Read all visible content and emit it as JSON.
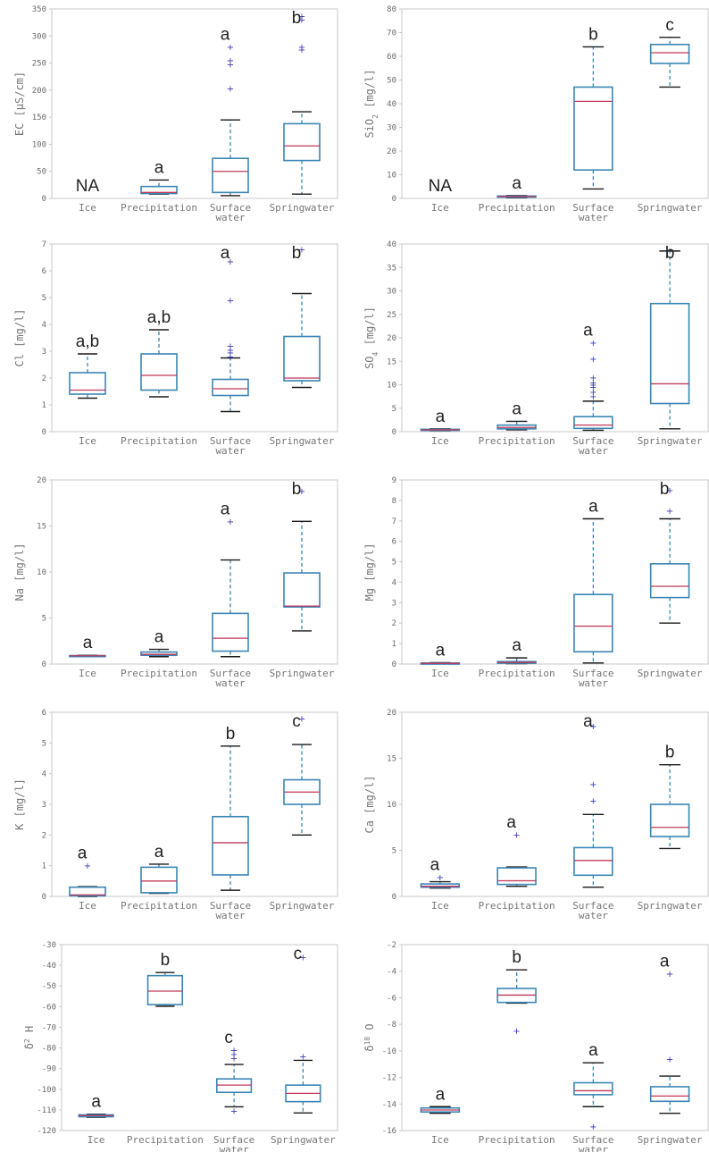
{
  "chart_data": [
    {
      "type": "box",
      "ylabel": "EC [µS/cm]",
      "ylim": [
        0,
        350
      ],
      "yticks": [
        "0",
        "50",
        "100",
        "150",
        "200",
        "250",
        "300",
        "350"
      ],
      "categories": [
        "Ice",
        "Precipitation",
        "Surface\nwater",
        "Springwater"
      ],
      "letters": [
        "NA",
        "a",
        "a",
        "b"
      ],
      "boxes": [
        null,
        {
          "low": 8,
          "q1": 9,
          "median": 11,
          "q3": 22,
          "high": 34,
          "outliers": []
        },
        {
          "low": 5,
          "q1": 11,
          "median": 50,
          "q3": 74,
          "high": 145,
          "outliers": [
            203,
            248,
            255,
            280
          ]
        },
        {
          "low": 8,
          "q1": 70,
          "median": 97,
          "q3": 138,
          "high": 160,
          "outliers": [
            275,
            280,
            330,
            337
          ]
        }
      ]
    },
    {
      "type": "box",
      "ylabel": "SiO2 [mg/l]",
      "ylim": [
        0,
        80
      ],
      "yticks": [
        "0",
        "10",
        "20",
        "30",
        "40",
        "50",
        "60",
        "70",
        "80"
      ],
      "categories": [
        "Ice",
        "Precipitation",
        "Surface\nwater",
        "Springwater"
      ],
      "letters": [
        "NA",
        "a",
        "b",
        "c"
      ],
      "boxes": [
        null,
        {
          "low": 0.3,
          "q1": 0.6,
          "median": 0.8,
          "q3": 1,
          "high": 1.2,
          "outliers": []
        },
        {
          "low": 4,
          "q1": 12,
          "median": 41,
          "q3": 47,
          "high": 64,
          "outliers": []
        },
        {
          "low": 47,
          "q1": 57,
          "median": 61.5,
          "q3": 65,
          "high": 68,
          "outliers": []
        }
      ]
    },
    {
      "type": "box",
      "ylabel": "Cl [mg/l]",
      "ylim": [
        0,
        7
      ],
      "yticks": [
        "0",
        "1",
        "2",
        "3",
        "4",
        "5",
        "6",
        "7"
      ],
      "categories": [
        "Ice",
        "Precipitation",
        "Surface\nwater",
        "Springwater"
      ],
      "letters": [
        "a,b",
        "a,b",
        "a",
        "b"
      ],
      "boxes": [
        {
          "low": 1.25,
          "q1": 1.4,
          "median": 1.55,
          "q3": 2.2,
          "high": 2.9,
          "outliers": []
        },
        {
          "low": 1.3,
          "q1": 1.55,
          "median": 2.1,
          "q3": 2.9,
          "high": 3.8,
          "outliers": []
        },
        {
          "low": 0.75,
          "q1": 1.35,
          "median": 1.6,
          "q3": 1.95,
          "high": 2.75,
          "outliers": [
            2.8,
            2.95,
            3.05,
            3.2,
            4.9,
            6.35
          ]
        },
        {
          "low": 1.65,
          "q1": 1.9,
          "median": 2.0,
          "q3": 3.55,
          "high": 5.15,
          "outliers": [
            6.8
          ]
        }
      ]
    },
    {
      "type": "box",
      "ylabel": "SO4 [mg/l]",
      "ylim": [
        0,
        40
      ],
      "yticks": [
        "0",
        "5",
        "10",
        "15",
        "20",
        "25",
        "30",
        "35",
        "40"
      ],
      "categories": [
        "Ice",
        "Precipitation",
        "Surface\nwater",
        "Springwater"
      ],
      "letters": [
        "a",
        "a",
        "a",
        "b"
      ],
      "boxes": [
        {
          "low": 0.2,
          "q1": 0.3,
          "median": 0.4,
          "q3": 0.5,
          "high": 0.6,
          "outliers": []
        },
        {
          "low": 0.4,
          "q1": 0.6,
          "median": 0.9,
          "q3": 1.4,
          "high": 2.2,
          "outliers": []
        },
        {
          "low": 0.3,
          "q1": 0.7,
          "median": 1.4,
          "q3": 3.2,
          "high": 6.5,
          "outliers": [
            7.5,
            8.5,
            9.5,
            10,
            10.5,
            11.5,
            15.5,
            19
          ]
        },
        {
          "low": 0.6,
          "q1": 6,
          "median": 10.2,
          "q3": 27.3,
          "high": 38.5,
          "outliers": []
        }
      ]
    },
    {
      "type": "box",
      "ylabel": "Na [mg/l]",
      "ylim": [
        0,
        20
      ],
      "yticks": [
        "0",
        "5",
        "10",
        "15",
        "20"
      ],
      "categories": [
        "Ice",
        "Precipitation",
        "Surface\nwater",
        "Springwater"
      ],
      "letters": [
        "a",
        "a",
        "a",
        "b"
      ],
      "boxes": [
        {
          "low": 0.85,
          "q1": 0.88,
          "median": 0.9,
          "q3": 0.92,
          "high": 0.95,
          "outliers": []
        },
        {
          "low": 0.8,
          "q1": 0.95,
          "median": 1.05,
          "q3": 1.3,
          "high": 1.6,
          "outliers": []
        },
        {
          "low": 0.8,
          "q1": 1.4,
          "median": 2.8,
          "q3": 5.5,
          "high": 11.3,
          "outliers": [
            15.5
          ]
        },
        {
          "low": 3.6,
          "q1": 6.2,
          "median": 6.3,
          "q3": 9.9,
          "high": 15.5,
          "outliers": [
            18.8
          ]
        }
      ]
    },
    {
      "type": "box",
      "ylabel": "Mg [mg/l]",
      "ylim": [
        0,
        9
      ],
      "yticks": [
        "0",
        "1",
        "2",
        "3",
        "4",
        "5",
        "6",
        "7",
        "8",
        "9"
      ],
      "categories": [
        "Ice",
        "Precipitation",
        "Surface\nwater",
        "Springwater"
      ],
      "letters": [
        "a",
        "a",
        "a",
        "b"
      ],
      "boxes": [
        {
          "low": 0.01,
          "q1": 0.02,
          "median": 0.03,
          "q3": 0.05,
          "high": 0.07,
          "outliers": []
        },
        {
          "low": 0.02,
          "q1": 0.04,
          "median": 0.08,
          "q3": 0.12,
          "high": 0.3,
          "outliers": []
        },
        {
          "low": 0.05,
          "q1": 0.6,
          "median": 1.85,
          "q3": 3.4,
          "high": 7.1,
          "outliers": []
        },
        {
          "low": 2.0,
          "q1": 3.25,
          "median": 3.8,
          "q3": 4.9,
          "high": 7.1,
          "outliers": [
            7.5,
            8.5
          ]
        }
      ]
    },
    {
      "type": "box",
      "ylabel": "K [mg/l]",
      "ylim": [
        0,
        6
      ],
      "yticks": [
        "0",
        "1",
        "2",
        "3",
        "4",
        "5",
        "6"
      ],
      "categories": [
        "Ice",
        "Precipitation",
        "Surface\nwater",
        "Springwater"
      ],
      "letters": [
        "a",
        "a",
        "b",
        "c"
      ],
      "boxes": [
        {
          "low": 0,
          "q1": 0.02,
          "median": 0.05,
          "q3": 0.3,
          "high": 0.32,
          "outliers": [
            1.0
          ]
        },
        {
          "low": 0.1,
          "q1": 0.12,
          "median": 0.5,
          "q3": 0.95,
          "high": 1.05,
          "outliers": []
        },
        {
          "low": 0.2,
          "q1": 0.7,
          "median": 1.75,
          "q3": 2.6,
          "high": 4.9,
          "outliers": []
        },
        {
          "low": 2.0,
          "q1": 3.0,
          "median": 3.4,
          "q3": 3.8,
          "high": 4.95,
          "outliers": [
            5.8
          ]
        }
      ]
    },
    {
      "type": "box",
      "ylabel": "Ca [mg/l]",
      "ylim": [
        0,
        20
      ],
      "yticks": [
        "0",
        "5",
        "10",
        "15",
        "20"
      ],
      "categories": [
        "Ice",
        "Precipitation",
        "Surface\nwater",
        "Springwater"
      ],
      "letters": [
        "a",
        "a",
        "a",
        "b"
      ],
      "boxes": [
        {
          "low": 0.9,
          "q1": 1.0,
          "median": 1.1,
          "q3": 1.35,
          "high": 1.6,
          "outliers": [
            2.1
          ]
        },
        {
          "low": 1.1,
          "q1": 1.3,
          "median": 1.7,
          "q3": 3.1,
          "high": 3.2,
          "outliers": [
            6.7
          ]
        },
        {
          "low": 1.0,
          "q1": 2.3,
          "median": 3.9,
          "q3": 5.3,
          "high": 8.9,
          "outliers": [
            10.4,
            12.2,
            18.5
          ]
        },
        {
          "low": 5.2,
          "q1": 6.5,
          "median": 7.5,
          "q3": 10.0,
          "high": 14.3,
          "outliers": []
        }
      ]
    },
    {
      "type": "box",
      "ylabel": "δ2H",
      "ylim": [
        -120,
        -30
      ],
      "yticks": [
        "-120",
        "-110",
        "-100",
        "-90",
        "-80",
        "-70",
        "-60",
        "-50",
        "-40",
        "-30"
      ],
      "categories": [
        "Ice",
        "Precipitation",
        "Surface\nwater",
        "Springwater"
      ],
      "letters": [
        "a",
        "b",
        "c",
        "c"
      ],
      "boxes": [
        {
          "low": -113.6,
          "q1": -113.3,
          "median": -112.8,
          "q3": -112.4,
          "high": -112.1,
          "outliers": []
        },
        {
          "low": -59.8,
          "q1": -59,
          "median": -52.5,
          "q3": -45,
          "high": -43.5,
          "outliers": []
        },
        {
          "low": -108.5,
          "q1": -101.5,
          "median": -98,
          "q3": -95,
          "high": -88,
          "outliers": [
            -110.5,
            -85,
            -83,
            -81
          ]
        },
        {
          "low": -111.5,
          "q1": -106,
          "median": -102,
          "q3": -98,
          "high": -86,
          "outliers": [
            -84,
            -36
          ]
        }
      ]
    },
    {
      "type": "box",
      "ylabel": "δ18 O",
      "ylim": [
        -16,
        -2
      ],
      "yticks": [
        "-16",
        "-14",
        "-12",
        "-10",
        "-8",
        "-6",
        "-4",
        "-2"
      ],
      "categories": [
        "Ice",
        "Precipitation",
        "Surface\nwater",
        "Springwater"
      ],
      "letters": [
        "a",
        "b",
        "a",
        "a"
      ],
      "boxes": [
        {
          "low": -14.7,
          "q1": -14.6,
          "median": -14.45,
          "q3": -14.3,
          "high": -14.2,
          "outliers": []
        },
        {
          "low": -6.4,
          "q1": -6.35,
          "median": -5.8,
          "q3": -5.3,
          "high": -3.9,
          "outliers": [
            -8.5
          ]
        },
        {
          "low": -14.2,
          "q1": -13.3,
          "median": -13.0,
          "q3": -12.4,
          "high": -10.9,
          "outliers": [
            -15.7
          ]
        },
        {
          "low": -14.7,
          "q1": -13.8,
          "median": -13.4,
          "q3": -12.7,
          "high": -11.9,
          "outliers": [
            -10.6,
            -4.2
          ]
        }
      ]
    }
  ]
}
